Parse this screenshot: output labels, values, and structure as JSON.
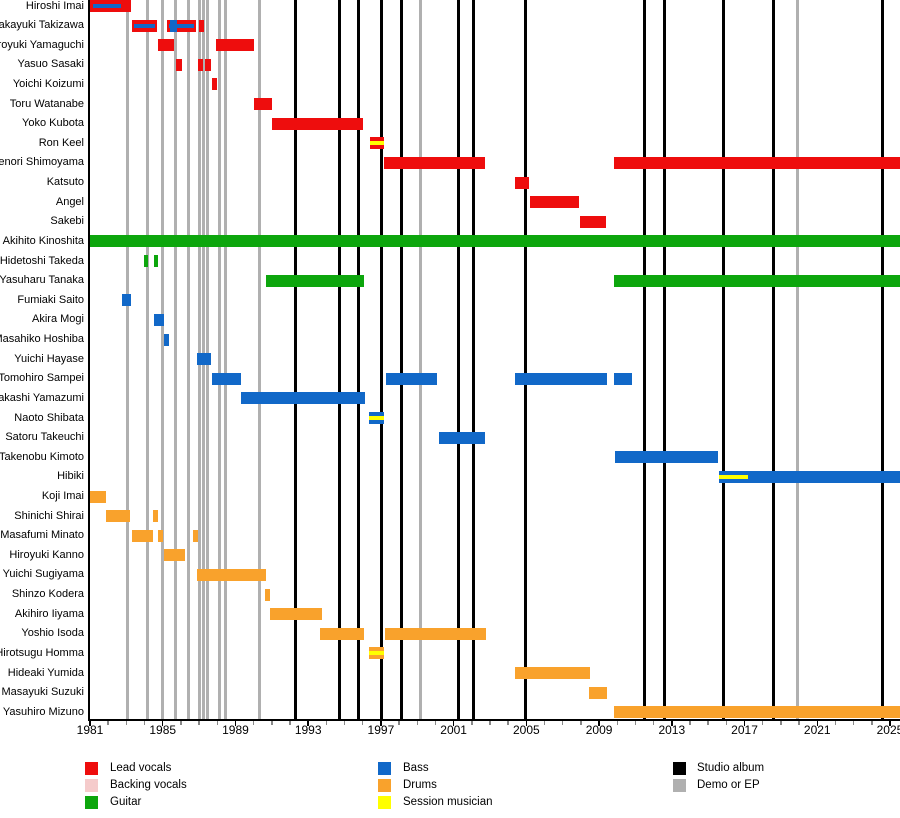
{
  "legend": {
    "columns": [
      [
        {
          "label": "Lead vocals",
          "role": "lead_vocals"
        },
        {
          "label": "Backing vocals",
          "role": "backing_vocals"
        },
        {
          "label": "Guitar",
          "role": "guitar"
        }
      ],
      [
        {
          "label": "Bass",
          "role": "bass"
        },
        {
          "label": "Drums",
          "role": "drums"
        },
        {
          "label": "Session musician",
          "role": "session"
        }
      ],
      [
        {
          "label": "Studio album",
          "role": "studio_album"
        },
        {
          "label": "Demo or EP",
          "role": "demo_ep"
        }
      ]
    ]
  },
  "chart_data": {
    "type": "bar",
    "subtype": "band-members-timeline-gantt",
    "title": "",
    "xlabel": "",
    "ylabel": "",
    "grid": false,
    "legend_position": "bottom",
    "x_axis": {
      "start": 1981,
      "end": 2025.55,
      "tick_years": [
        1981,
        1985,
        1989,
        1993,
        1997,
        2001,
        2005,
        2009,
        2013,
        2017,
        2021,
        2025
      ],
      "minor_tick_step_years": 1
    },
    "colors": {
      "lead_vocals": "#EE0D0D",
      "backing_vocals": "#F5CBCB",
      "guitar": "#0DA60D",
      "bass": "#1168C8",
      "drums": "#F9A22C",
      "session": "#FFFF00",
      "studio_album": "#000000",
      "demo_ep": "#B0B0B0"
    },
    "events": {
      "studio_album_years": [
        1992.3,
        1994.75,
        1995.75,
        1997.05,
        1998.15,
        2001.25,
        2002.1,
        2004.95,
        2011.5,
        2012.6,
        2015.85,
        2018.6,
        2024.6
      ],
      "demo_ep_years": [
        1983.05,
        1984.15,
        1985.0,
        1985.7,
        1986.4,
        1987.05,
        1987.25,
        1987.45,
        1988.15,
        1988.45,
        1990.3,
        1999.2,
        2019.9
      ]
    },
    "members": [
      {
        "name": "Hiroshi Imai",
        "bars": [
          {
            "start": 1981.0,
            "end": 1983.25,
            "role": "lead_vocals",
            "stripe": {
              "role": "bass",
              "start": 1981.15,
              "end": 1982.7
            }
          }
        ]
      },
      {
        "name": "Takayuki Takizawa",
        "bars": [
          {
            "start": 1983.3,
            "end": 1984.7,
            "role": "lead_vocals",
            "stripe": {
              "role": "bass",
              "start": 1983.4,
              "end": 1984.6
            }
          },
          {
            "start": 1985.25,
            "end": 1986.85,
            "role": "lead_vocals",
            "stripe": {
              "role": "bass",
              "start": 1985.35,
              "end": 1986.7
            }
          },
          {
            "start": 1985.4,
            "end": 1985.8,
            "role": "bass"
          },
          {
            "start": 1987.0,
            "end": 1987.25,
            "role": "lead_vocals"
          }
        ]
      },
      {
        "name": "Hiroyuki Yamaguchi",
        "bars": [
          {
            "start": 1984.75,
            "end": 1985.6,
            "role": "lead_vocals"
          },
          {
            "start": 1987.95,
            "end": 1990.0,
            "role": "lead_vocals"
          }
        ]
      },
      {
        "name": "Yasuo Sasaki",
        "bars": [
          {
            "start": 1985.75,
            "end": 1986.05,
            "role": "lead_vocals"
          },
          {
            "start": 1986.95,
            "end": 1987.2,
            "role": "lead_vocals"
          },
          {
            "start": 1987.3,
            "end": 1987.65,
            "role": "lead_vocals"
          }
        ]
      },
      {
        "name": "Yoichi Koizumi",
        "bars": [
          {
            "start": 1987.7,
            "end": 1988.0,
            "role": "lead_vocals"
          }
        ]
      },
      {
        "name": "Toru Watanabe",
        "bars": [
          {
            "start": 1990.0,
            "end": 1991.0,
            "role": "lead_vocals"
          }
        ]
      },
      {
        "name": "Yoko Kubota",
        "bars": [
          {
            "start": 1991.0,
            "end": 1996.0,
            "role": "lead_vocals"
          }
        ]
      },
      {
        "name": "Ron Keel",
        "bars": [
          {
            "start": 1996.4,
            "end": 1997.15,
            "role": "lead_vocals",
            "stripe": {
              "role": "session",
              "start": 1996.4,
              "end": 1997.15
            }
          }
        ]
      },
      {
        "name": "Takenori Shimoyama",
        "bars": [
          {
            "start": 1997.15,
            "end": 2002.75,
            "role": "lead_vocals"
          },
          {
            "start": 2009.8,
            "end": 2025.55,
            "role": "lead_vocals"
          }
        ]
      },
      {
        "name": "Katsuto",
        "bars": [
          {
            "start": 2004.4,
            "end": 2005.15,
            "role": "lead_vocals"
          }
        ]
      },
      {
        "name": "Angel",
        "bars": [
          {
            "start": 2005.2,
            "end": 2007.9,
            "role": "lead_vocals"
          }
        ]
      },
      {
        "name": "Sakebi",
        "bars": [
          {
            "start": 2007.95,
            "end": 2009.4,
            "role": "lead_vocals"
          }
        ]
      },
      {
        "name": "Akihito Kinoshita",
        "bars": [
          {
            "start": 1981.0,
            "end": 2025.55,
            "role": "guitar"
          }
        ]
      },
      {
        "name": "Hidetoshi Takeda",
        "bars": [
          {
            "start": 1983.95,
            "end": 1984.2,
            "role": "guitar"
          },
          {
            "start": 1984.5,
            "end": 1984.75,
            "role": "guitar"
          }
        ]
      },
      {
        "name": "Yasuharu Tanaka",
        "bars": [
          {
            "start": 1990.7,
            "end": 1996.05,
            "role": "guitar"
          },
          {
            "start": 2009.8,
            "end": 2025.55,
            "role": "guitar"
          }
        ]
      },
      {
        "name": "Fumiaki Saito",
        "bars": [
          {
            "start": 1982.75,
            "end": 1983.25,
            "role": "bass"
          }
        ]
      },
      {
        "name": "Akira Mogi",
        "bars": [
          {
            "start": 1984.5,
            "end": 1985.05,
            "role": "bass"
          }
        ]
      },
      {
        "name": "Masahiko Hoshiba",
        "bars": [
          {
            "start": 1985.05,
            "end": 1985.35,
            "role": "bass"
          }
        ]
      },
      {
        "name": "Yuichi Hayase",
        "bars": [
          {
            "start": 1986.9,
            "end": 1987.65,
            "role": "bass"
          }
        ]
      },
      {
        "name": "Tomohiro Sampei",
        "bars": [
          {
            "start": 1987.7,
            "end": 1989.3,
            "role": "bass"
          },
          {
            "start": 1997.3,
            "end": 2000.1,
            "role": "bass"
          },
          {
            "start": 2004.4,
            "end": 2009.45,
            "role": "bass"
          },
          {
            "start": 2009.8,
            "end": 2010.8,
            "role": "bass"
          }
        ]
      },
      {
        "name": "Takashi Yamazumi",
        "bars": [
          {
            "start": 1989.3,
            "end": 1996.1,
            "role": "bass"
          }
        ]
      },
      {
        "name": "Naoto Shibata",
        "bars": [
          {
            "start": 1996.35,
            "end": 1997.15,
            "role": "bass",
            "stripe": {
              "role": "session",
              "start": 1996.35,
              "end": 1997.15
            }
          }
        ]
      },
      {
        "name": "Satoru Takeuchi",
        "bars": [
          {
            "start": 2000.2,
            "end": 2002.75,
            "role": "bass"
          }
        ]
      },
      {
        "name": "Takenobu Kimoto",
        "bars": [
          {
            "start": 2009.85,
            "end": 2015.55,
            "role": "bass"
          }
        ]
      },
      {
        "name": "Hibiki",
        "bars": [
          {
            "start": 2015.6,
            "end": 2017.2,
            "role": "bass",
            "stripe": {
              "role": "session",
              "start": 2015.6,
              "end": 2017.2
            }
          },
          {
            "start": 2017.2,
            "end": 2025.55,
            "role": "bass"
          }
        ]
      },
      {
        "name": "Koji Imai",
        "bars": [
          {
            "start": 1981.0,
            "end": 1981.9,
            "role": "drums"
          }
        ]
      },
      {
        "name": "Shinichi Shirai",
        "bars": [
          {
            "start": 1981.9,
            "end": 1983.2,
            "role": "drums"
          },
          {
            "start": 1984.45,
            "end": 1984.75,
            "role": "drums"
          }
        ]
      },
      {
        "name": "Masafumi Minato",
        "bars": [
          {
            "start": 1983.3,
            "end": 1984.45,
            "role": "drums"
          },
          {
            "start": 1984.75,
            "end": 1985.0,
            "role": "drums"
          },
          {
            "start": 1986.65,
            "end": 1986.95,
            "role": "drums"
          }
        ]
      },
      {
        "name": "Hiroyuki Kanno",
        "bars": [
          {
            "start": 1985.05,
            "end": 1986.25,
            "role": "drums"
          }
        ]
      },
      {
        "name": "Yuichi Sugiyama",
        "bars": [
          {
            "start": 1986.9,
            "end": 1990.7,
            "role": "drums"
          }
        ]
      },
      {
        "name": "Shinzo Kodera",
        "bars": [
          {
            "start": 1990.65,
            "end": 1990.9,
            "role": "drums"
          }
        ]
      },
      {
        "name": "Akihiro Iiyama",
        "bars": [
          {
            "start": 1990.9,
            "end": 1993.75,
            "role": "drums"
          }
        ]
      },
      {
        "name": "Yoshio Isoda",
        "bars": [
          {
            "start": 1993.65,
            "end": 1996.05,
            "role": "drums"
          },
          {
            "start": 1997.25,
            "end": 2002.8,
            "role": "drums"
          }
        ]
      },
      {
        "name": "Hirotsugu Homma",
        "bars": [
          {
            "start": 1996.35,
            "end": 1997.15,
            "role": "drums",
            "stripe": {
              "role": "session",
              "start": 1996.35,
              "end": 1997.15
            }
          }
        ]
      },
      {
        "name": "Hideaki Yumida",
        "bars": [
          {
            "start": 2004.4,
            "end": 2008.5,
            "role": "drums"
          }
        ]
      },
      {
        "name": "Masayuki Suzuki",
        "bars": [
          {
            "start": 2008.45,
            "end": 2009.45,
            "role": "drums"
          }
        ]
      },
      {
        "name": "Yasuhiro Mizuno",
        "bars": [
          {
            "start": 2009.8,
            "end": 2025.55,
            "role": "drums"
          }
        ]
      }
    ]
  }
}
